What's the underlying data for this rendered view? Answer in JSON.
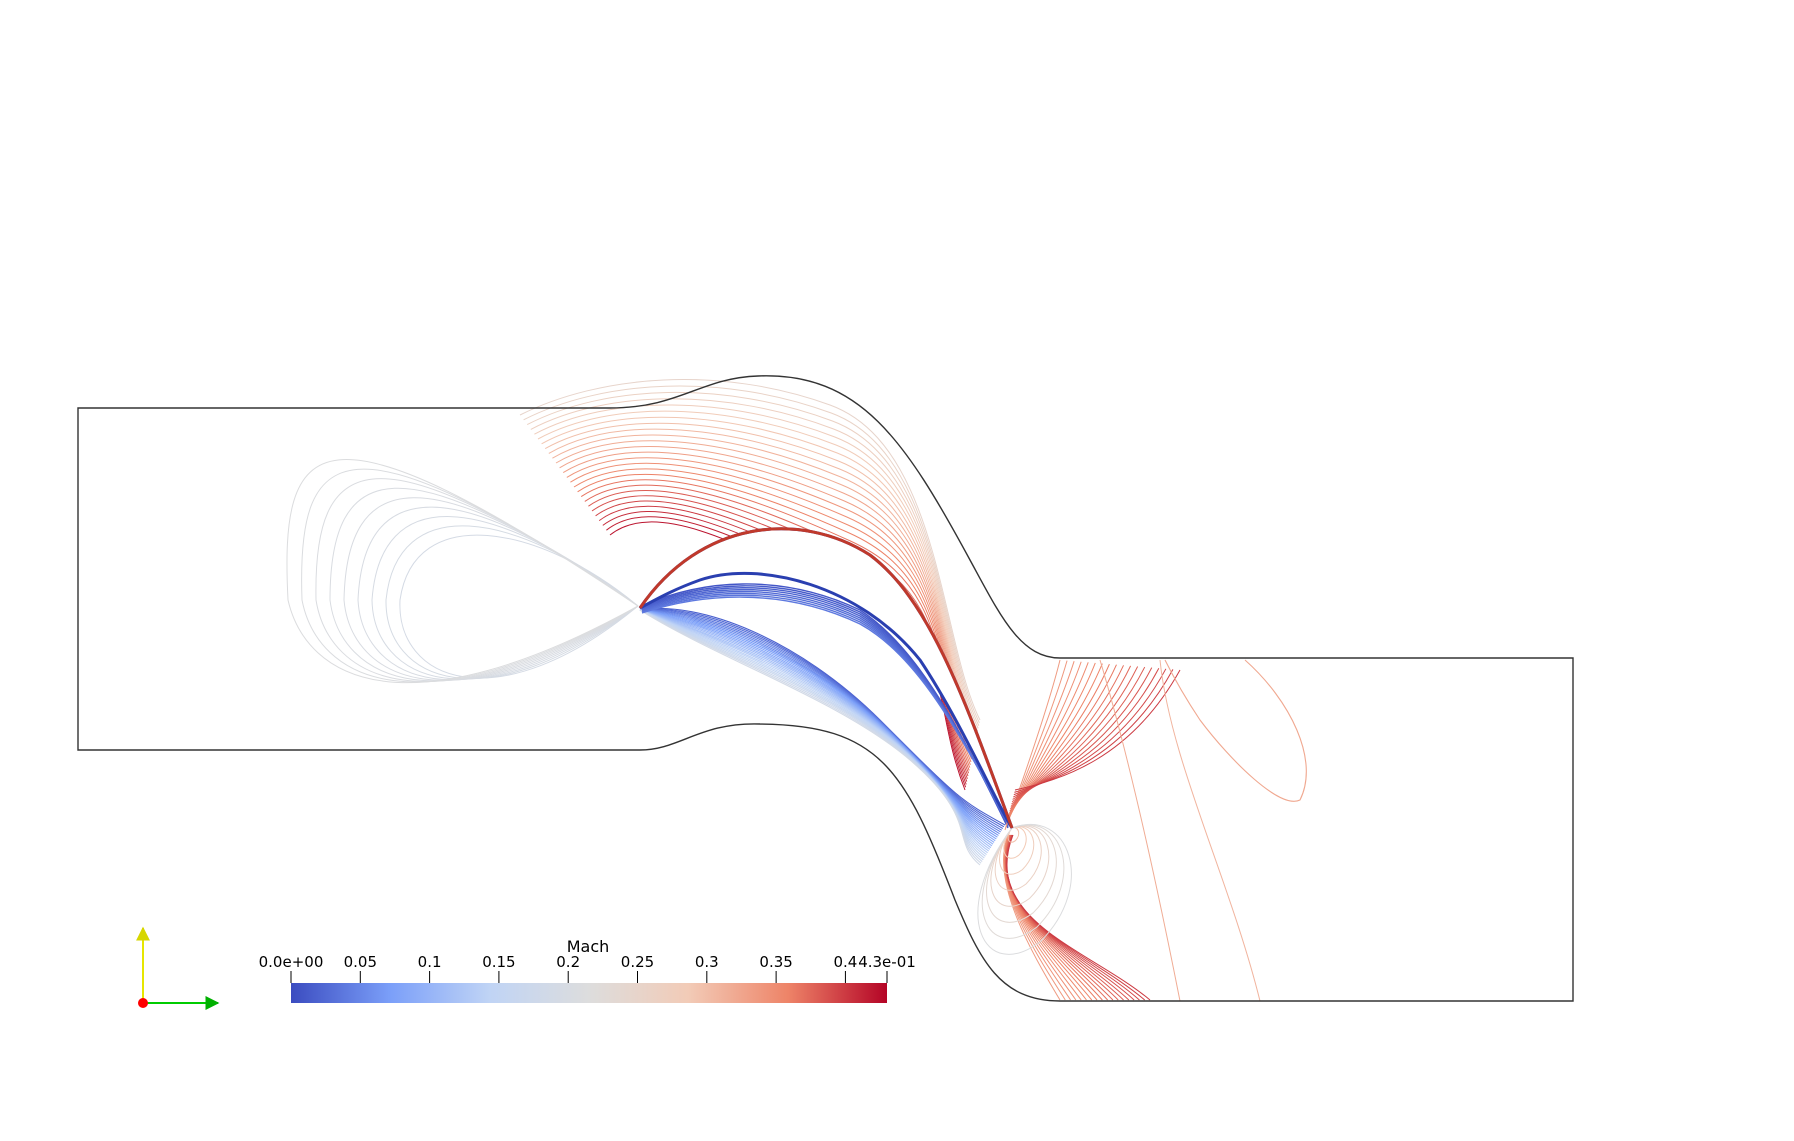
{
  "colorbar": {
    "title": "Mach",
    "range": [
      0.0,
      0.43
    ],
    "ticks": [
      {
        "value": 0.0,
        "label": "0.0e+00"
      },
      {
        "value": 0.05,
        "label": "0.05"
      },
      {
        "value": 0.1,
        "label": "0.1"
      },
      {
        "value": 0.15,
        "label": "0.15"
      },
      {
        "value": 0.2,
        "label": "0.2"
      },
      {
        "value": 0.25,
        "label": "0.25"
      },
      {
        "value": 0.3,
        "label": "0.3"
      },
      {
        "value": 0.35,
        "label": "0.35"
      },
      {
        "value": 0.4,
        "label": "0.4"
      },
      {
        "value": 0.43,
        "label": "4.3e-01"
      }
    ],
    "colormap": [
      "#3b4cc0",
      "#7b9ff9",
      "#c0d4f5",
      "#dddddd",
      "#f2cbb7",
      "#ee8468",
      "#b40426"
    ]
  },
  "orientation_axes": {
    "x_color": "#00cc00",
    "y_color": "#e6e600",
    "z_color": "#ff0000"
  },
  "colors": {
    "outline": "#333333",
    "background": "#ffffff"
  }
}
